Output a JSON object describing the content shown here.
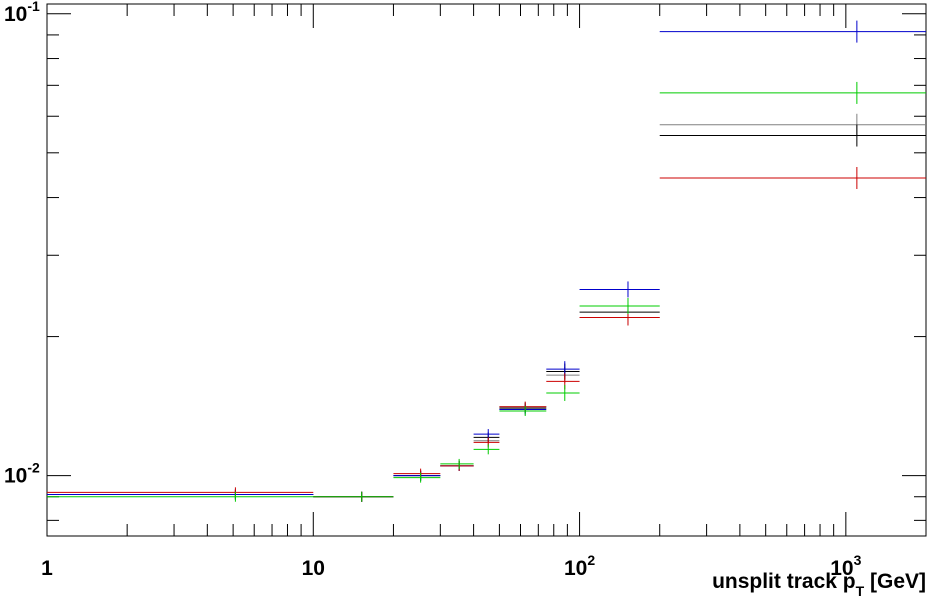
{
  "chart_data": {
    "type": "scatter",
    "title": "",
    "xlabel": {
      "main": "unsplit track p",
      "sub": "T",
      "unit": " [GeV]"
    },
    "ylabel": "",
    "xscale": "log",
    "yscale": "log",
    "xlim": [
      1,
      2000
    ],
    "ylim": [
      0.0074,
      0.105
    ],
    "grid": false,
    "x_ticks": [
      {
        "value": 1,
        "base": "1",
        "exp": ""
      },
      {
        "value": 10,
        "base": "10",
        "exp": ""
      },
      {
        "value": 100,
        "base": "10",
        "exp": "2"
      },
      {
        "value": 1000,
        "base": "10",
        "exp": "3"
      }
    ],
    "y_ticks": [
      {
        "value": 0.01,
        "base": "10",
        "exp": "-2"
      },
      {
        "value": 0.1,
        "base": "10",
        "exp": "-1"
      }
    ],
    "bins": [
      [
        1,
        10
      ],
      [
        10,
        20
      ],
      [
        20,
        30
      ],
      [
        30,
        40
      ],
      [
        40,
        50
      ],
      [
        50,
        75
      ],
      [
        75,
        100
      ],
      [
        100,
        200
      ],
      [
        200,
        2000
      ]
    ],
    "x": [
      5.1,
      15.2,
      25.3,
      35.3,
      45.4,
      62.5,
      88.0,
      152.0,
      1100.0
    ],
    "series": [
      {
        "color": "#808080",
        "values": [
          0.0091,
          0.009,
          0.01,
          0.0105,
          0.0119,
          0.0141,
          0.0165,
          0.022,
          0.0575
        ]
      },
      {
        "color": "#000000",
        "values": [
          0.0091,
          0.009,
          0.01,
          0.0105,
          0.0121,
          0.014,
          0.0168,
          0.0226,
          0.0545
        ]
      },
      {
        "color": "#0000cc",
        "values": [
          0.0091,
          0.009,
          0.01,
          0.0105,
          0.0123,
          0.0139,
          0.017,
          0.0253,
          0.0915
        ]
      },
      {
        "color": "#cc0000",
        "values": [
          0.0092,
          0.009,
          0.0101,
          0.0105,
          0.0118,
          0.0141,
          0.016,
          0.022,
          0.0441
        ]
      },
      {
        "color": "#00cc00",
        "values": [
          0.009,
          0.009,
          0.0099,
          0.0106,
          0.0114,
          0.0138,
          0.0151,
          0.0233,
          0.0674
        ]
      }
    ]
  }
}
